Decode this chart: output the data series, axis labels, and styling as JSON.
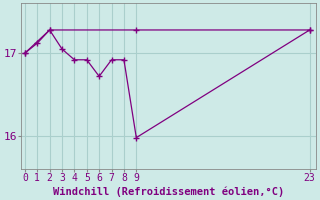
{
  "xlabel": "Windchill (Refroidissement éolien,°C)",
  "bg_color": "#ceeae7",
  "line_color": "#800080",
  "grid_color": "#aacfcc",
  "line1_x": [
    0,
    1,
    2,
    3,
    4,
    5,
    6,
    7,
    8,
    9,
    23
  ],
  "line1_y": [
    17.0,
    17.12,
    17.28,
    17.05,
    16.92,
    16.92,
    16.72,
    16.92,
    16.92,
    15.98,
    17.28
  ],
  "line2_x": [
    0,
    2,
    9,
    23
  ],
  "line2_y": [
    17.0,
    17.28,
    17.28,
    17.28
  ],
  "yticks": [
    16,
    17
  ],
  "xticks": [
    0,
    1,
    2,
    3,
    4,
    5,
    6,
    7,
    8,
    9,
    23
  ],
  "xlim": [
    -0.3,
    23.5
  ],
  "ylim": [
    15.6,
    17.6
  ],
  "fontsize": 7,
  "xlabel_fontsize": 7.5
}
